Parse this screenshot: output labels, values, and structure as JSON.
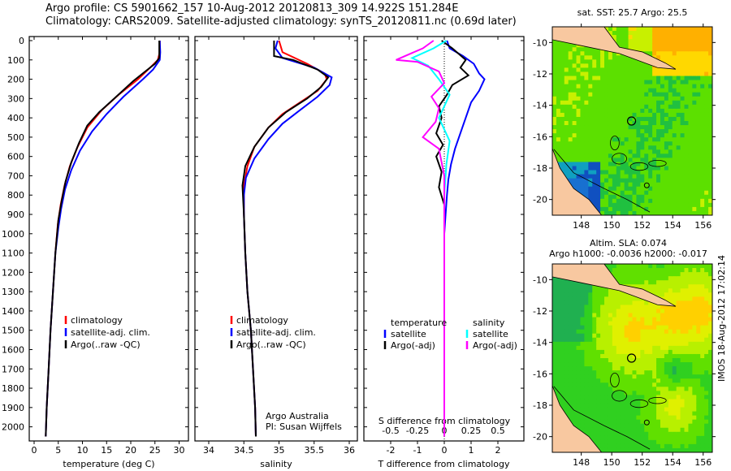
{
  "title_line1": "Argo profile: CS 5901662_157 10-Aug-2012 20120813_309 14.922S 151.284E",
  "title_line2": "Climatology: CARS2009. Satellite-adjusted climatology: synTS_20120811.nc (0.69d later)",
  "timestamp": "IMOS 18-Aug-2012 17:02:14",
  "chart_data": [
    {
      "type": "line",
      "id": "temperature",
      "xlabel": "temperature (deg C)",
      "xlim": [
        -1,
        31.5
      ],
      "xticks": [
        0,
        5,
        10,
        15,
        20,
        25,
        30
      ],
      "ylim": [
        0,
        2050
      ],
      "yticks": [
        0,
        100,
        200,
        300,
        400,
        500,
        600,
        700,
        800,
        900,
        1000,
        1100,
        1200,
        1300,
        1400,
        1500,
        1600,
        1700,
        1800,
        1900,
        2000
      ],
      "yreverse": true,
      "legend": [
        "climatology",
        "satellite-adj. clim.",
        "Argo(..raw -QC)"
      ],
      "series": [
        {
          "name": "climatology",
          "color": "#ff0000",
          "points": [
            [
              26,
              0
            ],
            [
              26,
              60
            ],
            [
              25.6,
              100
            ],
            [
              24,
              140
            ],
            [
              21.5,
              200
            ],
            [
              17.5,
              280
            ],
            [
              14,
              360
            ],
            [
              11,
              450
            ],
            [
              9,
              550
            ],
            [
              7.4,
              650
            ],
            [
              6.3,
              750
            ],
            [
              5.5,
              850
            ],
            [
              4.9,
              950
            ],
            [
              4.4,
              1100
            ],
            [
              3.9,
              1300
            ],
            [
              3.4,
              1500
            ],
            [
              3,
              1700
            ],
            [
              2.6,
              1900
            ],
            [
              2.4,
              2050
            ]
          ]
        },
        {
          "name": "satellite-adj. clim.",
          "color": "#0000ff",
          "points": [
            [
              26,
              0
            ],
            [
              26.1,
              60
            ],
            [
              26,
              100
            ],
            [
              24.6,
              150
            ],
            [
              22.5,
              200
            ],
            [
              18.5,
              290
            ],
            [
              15,
              380
            ],
            [
              12,
              470
            ],
            [
              9.5,
              570
            ],
            [
              7.7,
              670
            ],
            [
              6.4,
              770
            ],
            [
              5.6,
              870
            ],
            [
              5,
              970
            ],
            [
              4.4,
              1100
            ],
            [
              3.9,
              1300
            ],
            [
              3.4,
              1500
            ],
            [
              3,
              1700
            ],
            [
              2.6,
              1900
            ],
            [
              2.4,
              2050
            ]
          ]
        },
        {
          "name": "Argo(..raw -QC)",
          "color": "#000000",
          "points": [
            [
              25.9,
              0
            ],
            [
              25.9,
              90
            ],
            [
              25,
              120
            ],
            [
              23,
              160
            ],
            [
              20.5,
              210
            ],
            [
              17,
              290
            ],
            [
              13.5,
              370
            ],
            [
              11,
              440
            ],
            [
              9.3,
              530
            ],
            [
              7.7,
              630
            ],
            [
              6.5,
              730
            ],
            [
              5.7,
              830
            ],
            [
              5,
              930
            ],
            [
              4.4,
              1100
            ],
            [
              3.9,
              1300
            ],
            [
              3.4,
              1500
            ],
            [
              3,
              1700
            ],
            [
              2.6,
              1900
            ],
            [
              2.4,
              2050
            ]
          ]
        }
      ]
    },
    {
      "type": "line",
      "id": "salinity",
      "xlabel": "salinity",
      "xlim": [
        33.8,
        36.15
      ],
      "xticks": [
        34,
        34.5,
        35,
        35.5,
        36
      ],
      "ylim": [
        0,
        2050
      ],
      "yreverse": true,
      "legend": [
        "climatology",
        "satellite-adj. clim.",
        "Argo(..raw -QC)"
      ],
      "annotation": [
        "Argo Australia",
        "PI: Susan Wijffels"
      ],
      "series": [
        {
          "name": "climatology",
          "color": "#ff0000",
          "points": [
            [
              35,
              0
            ],
            [
              35.05,
              60
            ],
            [
              35.4,
              120
            ],
            [
              35.65,
              170
            ],
            [
              35.68,
              200
            ],
            [
              35.55,
              260
            ],
            [
              35.3,
              320
            ],
            [
              35.05,
              380
            ],
            [
              34.85,
              450
            ],
            [
              34.65,
              550
            ],
            [
              34.55,
              650
            ],
            [
              34.5,
              750
            ],
            [
              34.5,
              900
            ],
            [
              34.52,
              1100
            ],
            [
              34.55,
              1300
            ],
            [
              34.6,
              1500
            ],
            [
              34.63,
              1700
            ],
            [
              34.66,
              1900
            ],
            [
              34.67,
              2050
            ]
          ]
        },
        {
          "name": "satellite-adj. clim.",
          "color": "#0000ff",
          "points": [
            [
              34.98,
              0
            ],
            [
              34.95,
              40
            ],
            [
              35.05,
              90
            ],
            [
              35.5,
              140
            ],
            [
              35.75,
              190
            ],
            [
              35.72,
              230
            ],
            [
              35.55,
              290
            ],
            [
              35.3,
              360
            ],
            [
              35.05,
              430
            ],
            [
              34.85,
              510
            ],
            [
              34.65,
              610
            ],
            [
              34.53,
              710
            ],
            [
              34.5,
              800
            ],
            [
              34.5,
              900
            ],
            [
              34.52,
              1100
            ],
            [
              34.55,
              1300
            ],
            [
              34.6,
              1500
            ],
            [
              34.63,
              1700
            ],
            [
              34.66,
              1900
            ],
            [
              34.67,
              2050
            ]
          ]
        },
        {
          "name": "Argo(..raw -QC)",
          "color": "#000000",
          "points": [
            [
              34.93,
              0
            ],
            [
              34.93,
              80
            ],
            [
              35.2,
              100
            ],
            [
              35.55,
              150
            ],
            [
              35.7,
              190
            ],
            [
              35.6,
              240
            ],
            [
              35.4,
              300
            ],
            [
              35.1,
              370
            ],
            [
              34.85,
              450
            ],
            [
              34.65,
              550
            ],
            [
              34.52,
              650
            ],
            [
              34.48,
              750
            ],
            [
              34.5,
              900
            ],
            [
              34.52,
              1100
            ],
            [
              34.55,
              1300
            ],
            [
              34.6,
              1500
            ],
            [
              34.63,
              1700
            ],
            [
              34.66,
              1900
            ],
            [
              34.67,
              2050
            ]
          ]
        }
      ]
    },
    {
      "type": "line",
      "id": "difference",
      "xlabel": "T difference from climatology",
      "xlabel_top": "S difference from climatology",
      "xlim": [
        -3,
        3
      ],
      "xticks": [
        -2,
        -1,
        0,
        1,
        2
      ],
      "xticks_s": [
        -0.5,
        -0.25,
        0,
        0.25,
        0.5
      ],
      "ylim": [
        0,
        2050
      ],
      "yreverse": true,
      "legend_headers": [
        "temperature",
        "salinity"
      ],
      "legend": [
        "satellite",
        "Argo(-adj)",
        "satellite",
        "Argo(-adj)"
      ],
      "series": [
        {
          "name": "T satellite",
          "color": "#0000ff",
          "scale": "T",
          "points": [
            [
              0.1,
              0
            ],
            [
              0.2,
              40
            ],
            [
              0.7,
              80
            ],
            [
              1.1,
              120
            ],
            [
              1.3,
              170
            ],
            [
              1.5,
              200
            ],
            [
              1.3,
              260
            ],
            [
              1,
              320
            ],
            [
              0.8,
              400
            ],
            [
              0.6,
              480
            ],
            [
              0.4,
              560
            ],
            [
              0.25,
              640
            ],
            [
              0.15,
              720
            ],
            [
              0.1,
              800
            ],
            [
              0.05,
              900
            ],
            [
              0,
              1000
            ],
            [
              0,
              2050
            ]
          ]
        },
        {
          "name": "T Argo(-adj)",
          "color": "#000000",
          "scale": "T",
          "points": [
            [
              -0.1,
              0
            ],
            [
              0.3,
              40
            ],
            [
              0.8,
              100
            ],
            [
              0.6,
              140
            ],
            [
              0.9,
              180
            ],
            [
              0.3,
              230
            ],
            [
              0.1,
              280
            ],
            [
              -0.2,
              340
            ],
            [
              -0.1,
              400
            ],
            [
              -0.3,
              480
            ],
            [
              -0.05,
              540
            ],
            [
              -0.3,
              600
            ],
            [
              -0.1,
              680
            ],
            [
              -0.2,
              760
            ],
            [
              0,
              850
            ],
            [
              0,
              1000
            ],
            [
              0,
              2050
            ]
          ]
        },
        {
          "name": "S satellite",
          "color": "#00ffff",
          "scale": "S",
          "points": [
            [
              0.02,
              0
            ],
            [
              -0.1,
              40
            ],
            [
              -0.3,
              90
            ],
            [
              -0.15,
              130
            ],
            [
              -0.05,
              200
            ],
            [
              0.05,
              280
            ],
            [
              -0.05,
              400
            ],
            [
              0.05,
              520
            ],
            [
              0.02,
              640
            ],
            [
              0,
              800
            ],
            [
              0,
              2050
            ]
          ]
        },
        {
          "name": "S Argo(-adj)",
          "color": "#ff00ff",
          "scale": "S",
          "points": [
            [
              -0.1,
              0
            ],
            [
              -0.2,
              40
            ],
            [
              -0.45,
              100
            ],
            [
              -0.25,
              110
            ],
            [
              -0.05,
              160
            ],
            [
              0,
              220
            ],
            [
              -0.12,
              290
            ],
            [
              -0.05,
              350
            ],
            [
              -0.08,
              420
            ],
            [
              -0.2,
              500
            ],
            [
              -0.05,
              560
            ],
            [
              0,
              700
            ],
            [
              0,
              2050
            ]
          ]
        }
      ]
    }
  ],
  "maps": [
    {
      "id": "sst-map",
      "title_lines": [
        "sat. SST: 25.7 Argo: 25.5"
      ],
      "lon_ticks": [
        148,
        150,
        152,
        154,
        156
      ],
      "lat_ticks": [
        -10,
        -12,
        -14,
        -16,
        -18,
        -20
      ],
      "lon_range": [
        146.1,
        156.6
      ],
      "lat_range": [
        -21,
        -9
      ],
      "float_marker": [
        151.3,
        -15
      ]
    },
    {
      "id": "sla-map",
      "title_lines": [
        "Altim. SLA: 0.074",
        "Argo h1000: -0.0036 h2000: -0.017"
      ],
      "lon_ticks": [
        148,
        150,
        152,
        154,
        156
      ],
      "lat_ticks": [
        -10,
        -12,
        -14,
        -16,
        -18,
        -20
      ],
      "lon_range": [
        146.1,
        156.6
      ],
      "lat_range": [
        -21,
        -9
      ],
      "float_marker": [
        151.3,
        -15
      ]
    }
  ]
}
